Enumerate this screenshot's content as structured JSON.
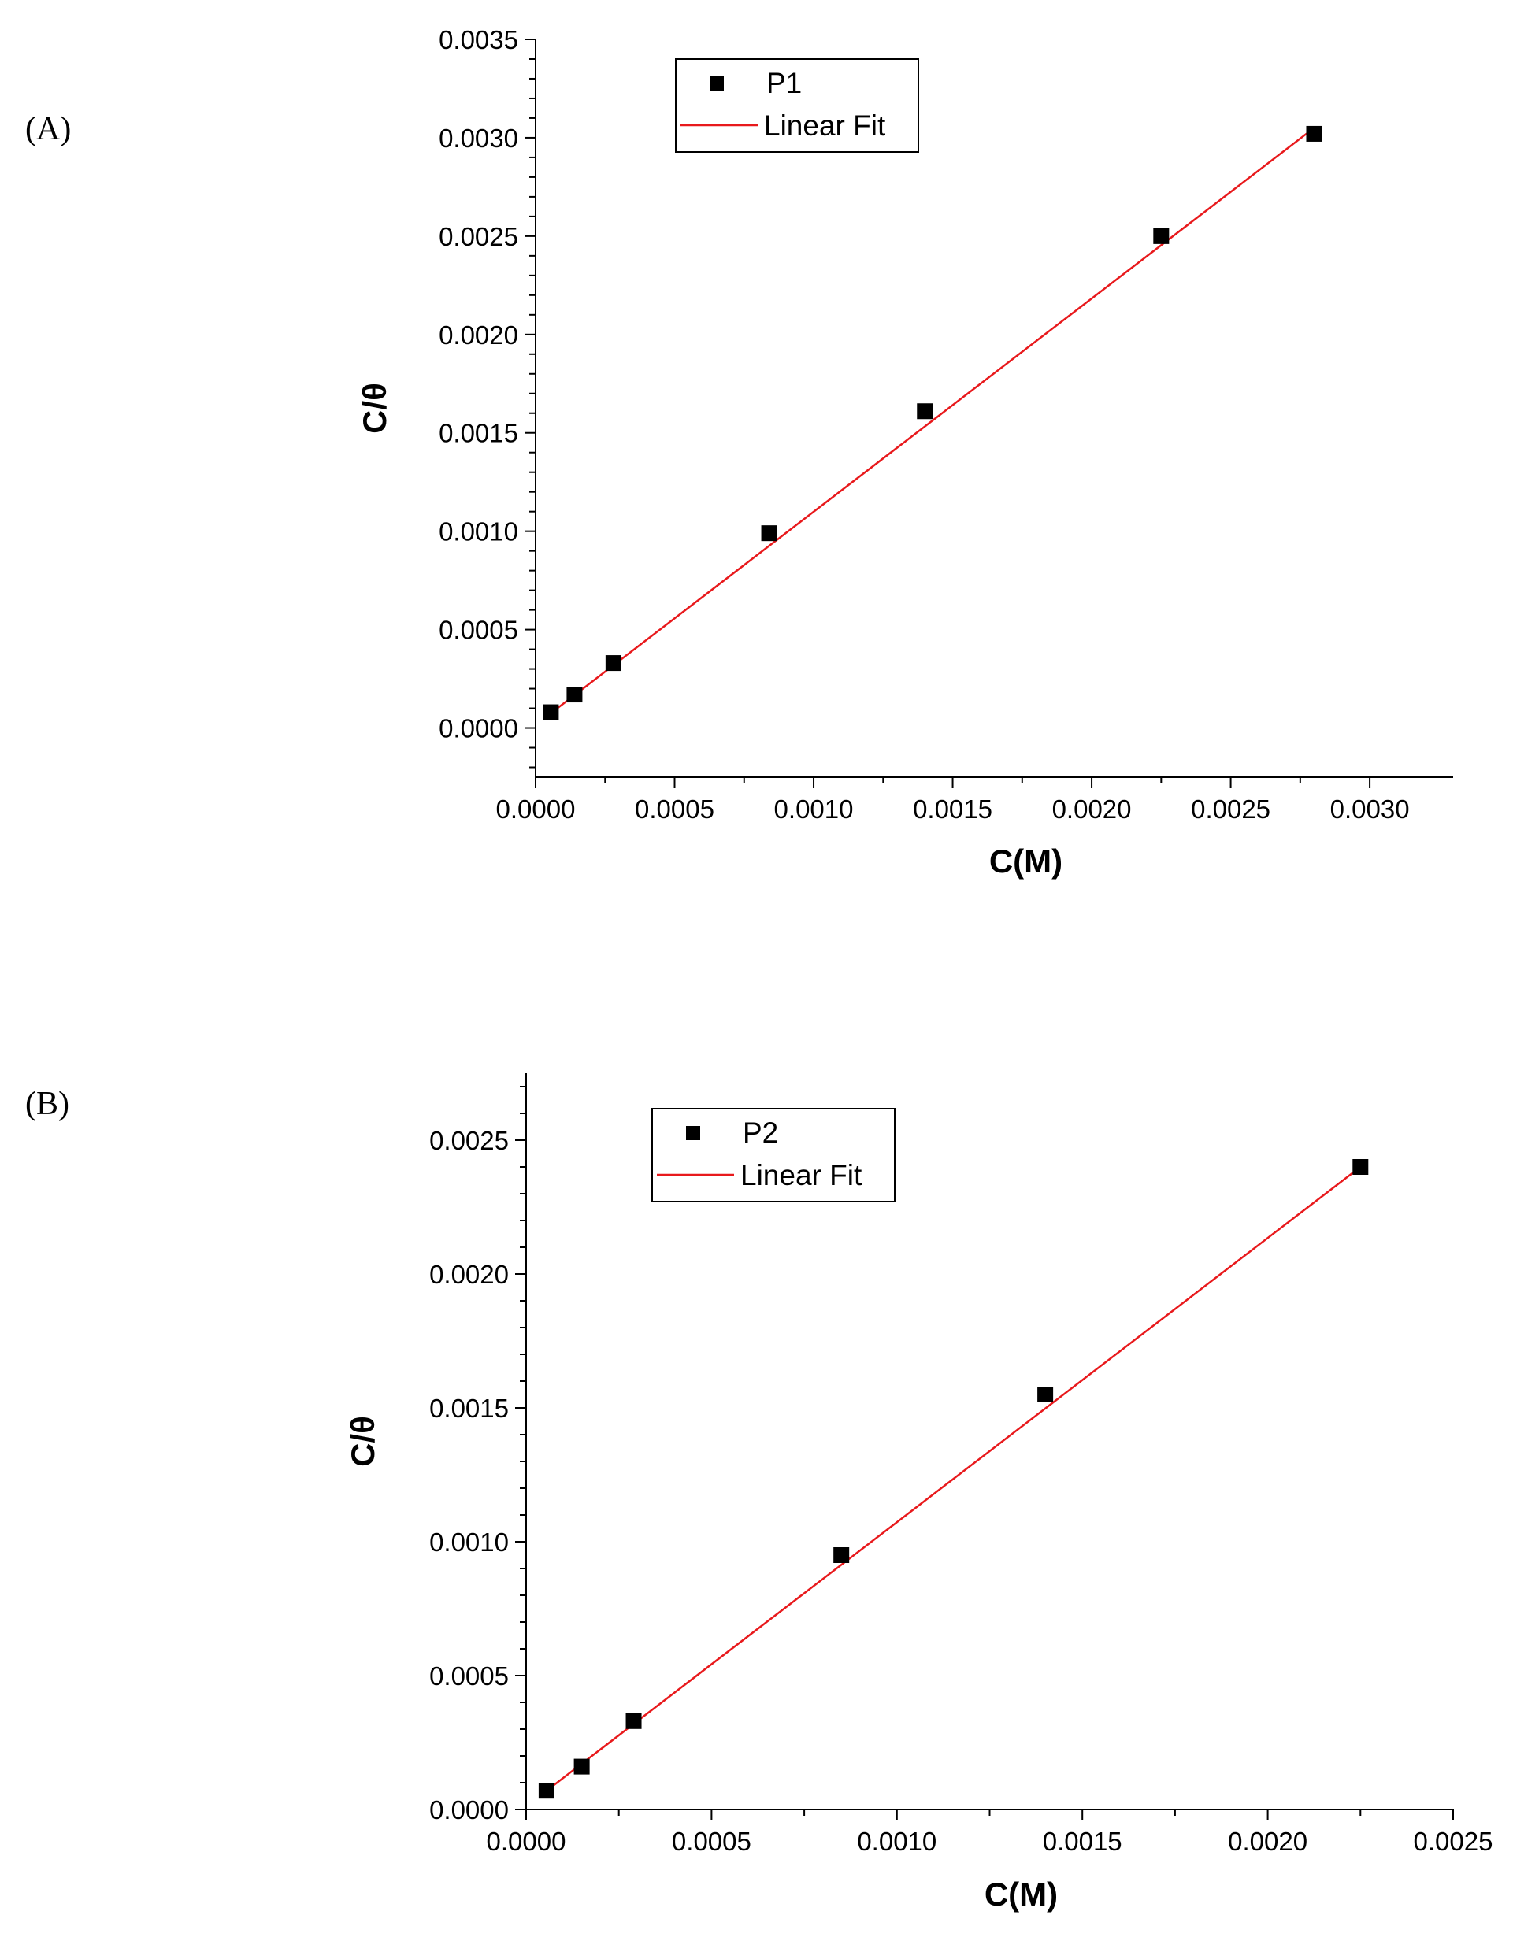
{
  "panels": [
    {
      "label": "(A)"
    },
    {
      "label": "(B)"
    }
  ],
  "colors": {
    "marker": "#000000",
    "fit": "#e8191c",
    "axis": "#000000"
  },
  "chart_data": [
    {
      "type": "scatter",
      "xlabel": "C(M)",
      "ylabel": "C/θ",
      "xlim": [
        0.0,
        0.0033
      ],
      "ylim": [
        -0.00025,
        0.0035
      ],
      "x_ticks": [
        "0.0000",
        "0.0005",
        "0.0010",
        "0.0015",
        "0.0020",
        "0.0025",
        "0.0030"
      ],
      "x_tick_values": [
        0.0,
        0.0005,
        0.001,
        0.0015,
        0.002,
        0.0025,
        0.003
      ],
      "y_ticks": [
        "0.0000",
        "0.0005",
        "0.0010",
        "0.0015",
        "0.0020",
        "0.0025",
        "0.0030",
        "0.0035"
      ],
      "y_tick_values": [
        0.0,
        0.0005,
        0.001,
        0.0015,
        0.002,
        0.0025,
        0.003,
        0.0035
      ],
      "legend": {
        "position": "top-left",
        "entries": [
          "P1",
          "Linear Fit"
        ]
      },
      "series": [
        {
          "name": "P1",
          "kind": "scatter",
          "x": [
            5.5e-05,
            0.00014,
            0.00028,
            0.00084,
            0.0014,
            0.00225,
            0.0028
          ],
          "y": [
            8e-05,
            0.00017,
            0.00033,
            0.00099,
            0.00161,
            0.0025,
            0.00302
          ]
        },
        {
          "name": "Linear Fit",
          "kind": "line",
          "x": [
            5.5e-05,
            0.0028
          ],
          "y": [
            7.5e-05,
            0.00305
          ]
        }
      ]
    },
    {
      "type": "scatter",
      "xlabel": "C(M)",
      "ylabel": "C/θ",
      "xlim": [
        0.0,
        0.0025
      ],
      "ylim": [
        0.0,
        0.00275
      ],
      "x_ticks": [
        "0.0000",
        "0.0005",
        "0.0010",
        "0.0015",
        "0.0020",
        "0.0025"
      ],
      "x_tick_values": [
        0.0,
        0.0005,
        0.001,
        0.0015,
        0.002,
        0.0025
      ],
      "y_ticks": [
        "0.0000",
        "0.0005",
        "0.0010",
        "0.0015",
        "0.0020",
        "0.0025"
      ],
      "y_tick_values": [
        0.0,
        0.0005,
        0.001,
        0.0015,
        0.002,
        0.0025
      ],
      "legend": {
        "position": "top-left",
        "entries": [
          "P2",
          "Linear Fit"
        ]
      },
      "series": [
        {
          "name": "P2",
          "kind": "scatter",
          "x": [
            5.5e-05,
            0.00015,
            0.00029,
            0.00085,
            0.0014,
            0.00225
          ],
          "y": [
            7e-05,
            0.00016,
            0.00033,
            0.00095,
            0.00155,
            0.0024
          ]
        },
        {
          "name": "Linear Fit",
          "kind": "line",
          "x": [
            5.5e-05,
            0.00225
          ],
          "y": [
            7e-05,
            0.0024
          ]
        }
      ]
    }
  ]
}
